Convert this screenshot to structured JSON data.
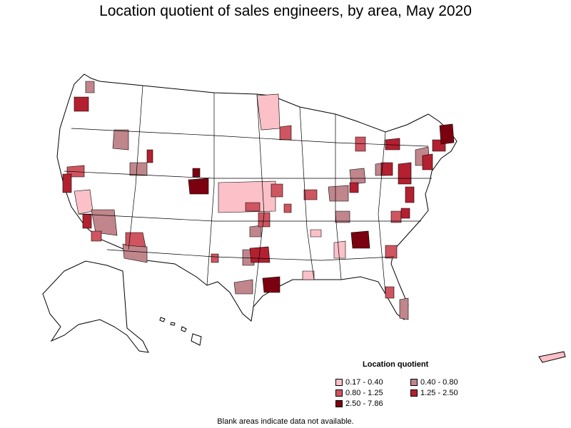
{
  "title": "Location quotient of sales engineers, by area, May 2020",
  "legend": {
    "title": "Location quotient",
    "items": [
      {
        "label": "0.17 - 0.40",
        "color": "#fbc0c8"
      },
      {
        "label": "0.40 - 0.80",
        "color": "#c0868c"
      },
      {
        "label": "0.80 - 1.25",
        "color": "#cf5560"
      },
      {
        "label": "1.25 - 2.50",
        "color": "#b32030"
      },
      {
        "label": "2.50 - 7.86",
        "color": "#7b0010"
      }
    ]
  },
  "footnote": "Blank areas indicate data not available."
}
